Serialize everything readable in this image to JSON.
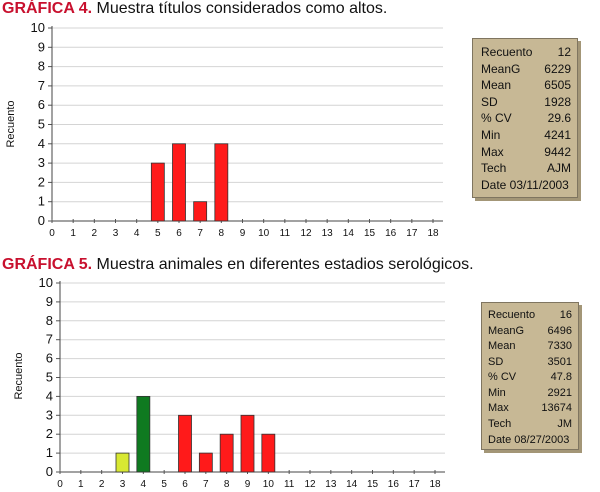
{
  "figures": [
    {
      "label": "GRÁFICA 4.",
      "caption": "Muestra títulos considerados como altos.",
      "stats": [
        {
          "key": "Recuento",
          "value": "12"
        },
        {
          "key": "MeanG",
          "value": "6229"
        },
        {
          "key": "Mean",
          "value": "6505"
        },
        {
          "key": "SD",
          "value": "1928"
        },
        {
          "key": "% CV",
          "value": "29.6"
        },
        {
          "key": "Min",
          "value": "4241"
        },
        {
          "key": "Max",
          "value": "9442"
        },
        {
          "key": "Tech",
          "value": "AJM"
        }
      ],
      "date": "Date 03/11/2003"
    },
    {
      "label": "GRÁFICA 5.",
      "caption": "Muestra animales en diferentes estadios serológicos.",
      "stats": [
        {
          "key": "Recuento",
          "value": "16"
        },
        {
          "key": "MeanG",
          "value": "6496"
        },
        {
          "key": "Mean",
          "value": "7330"
        },
        {
          "key": "SD",
          "value": "3501"
        },
        {
          "key": "% CV",
          "value": "47.8"
        },
        {
          "key": "Min",
          "value": "2921"
        },
        {
          "key": "Max",
          "value": "13674"
        },
        {
          "key": "Tech",
          "value": "JM"
        }
      ],
      "date": "Date 08/27/2003"
    }
  ],
  "chart_data": [
    {
      "type": "bar",
      "ylabel": "Recuento",
      "xlabel": "",
      "ylim": [
        0,
        10
      ],
      "xlim": [
        0,
        18
      ],
      "x_ticks": [
        0,
        1,
        2,
        3,
        4,
        5,
        6,
        7,
        8,
        9,
        10,
        11,
        12,
        13,
        14,
        15,
        16,
        17,
        18
      ],
      "y_ticks": [
        0,
        1,
        2,
        3,
        4,
        5,
        6,
        7,
        8,
        9,
        10
      ],
      "grid": true,
      "bars": [
        {
          "x": 5,
          "value": 3,
          "color": "#ff1a1a"
        },
        {
          "x": 6,
          "value": 4,
          "color": "#ff1a1a"
        },
        {
          "x": 7,
          "value": 1,
          "color": "#ff1a1a"
        },
        {
          "x": 8,
          "value": 4,
          "color": "#ff1a1a"
        }
      ]
    },
    {
      "type": "bar",
      "ylabel": "Recuento",
      "xlabel": "",
      "ylim": [
        0,
        10
      ],
      "xlim": [
        0,
        18
      ],
      "x_ticks": [
        0,
        1,
        2,
        3,
        4,
        5,
        6,
        7,
        8,
        9,
        10,
        11,
        12,
        13,
        14,
        15,
        16,
        17,
        18
      ],
      "y_ticks": [
        0,
        1,
        2,
        3,
        4,
        5,
        6,
        7,
        8,
        9,
        10
      ],
      "grid": true,
      "bars": [
        {
          "x": 3,
          "value": 1,
          "color": "#d8e832"
        },
        {
          "x": 4,
          "value": 4,
          "color": "#0f7a20"
        },
        {
          "x": 6,
          "value": 3,
          "color": "#ff1a1a"
        },
        {
          "x": 7,
          "value": 1,
          "color": "#ff1a1a"
        },
        {
          "x": 8,
          "value": 2,
          "color": "#ff1a1a"
        },
        {
          "x": 9,
          "value": 3,
          "color": "#ff1a1a"
        },
        {
          "x": 10,
          "value": 2,
          "color": "#ff1a1a"
        }
      ]
    }
  ]
}
